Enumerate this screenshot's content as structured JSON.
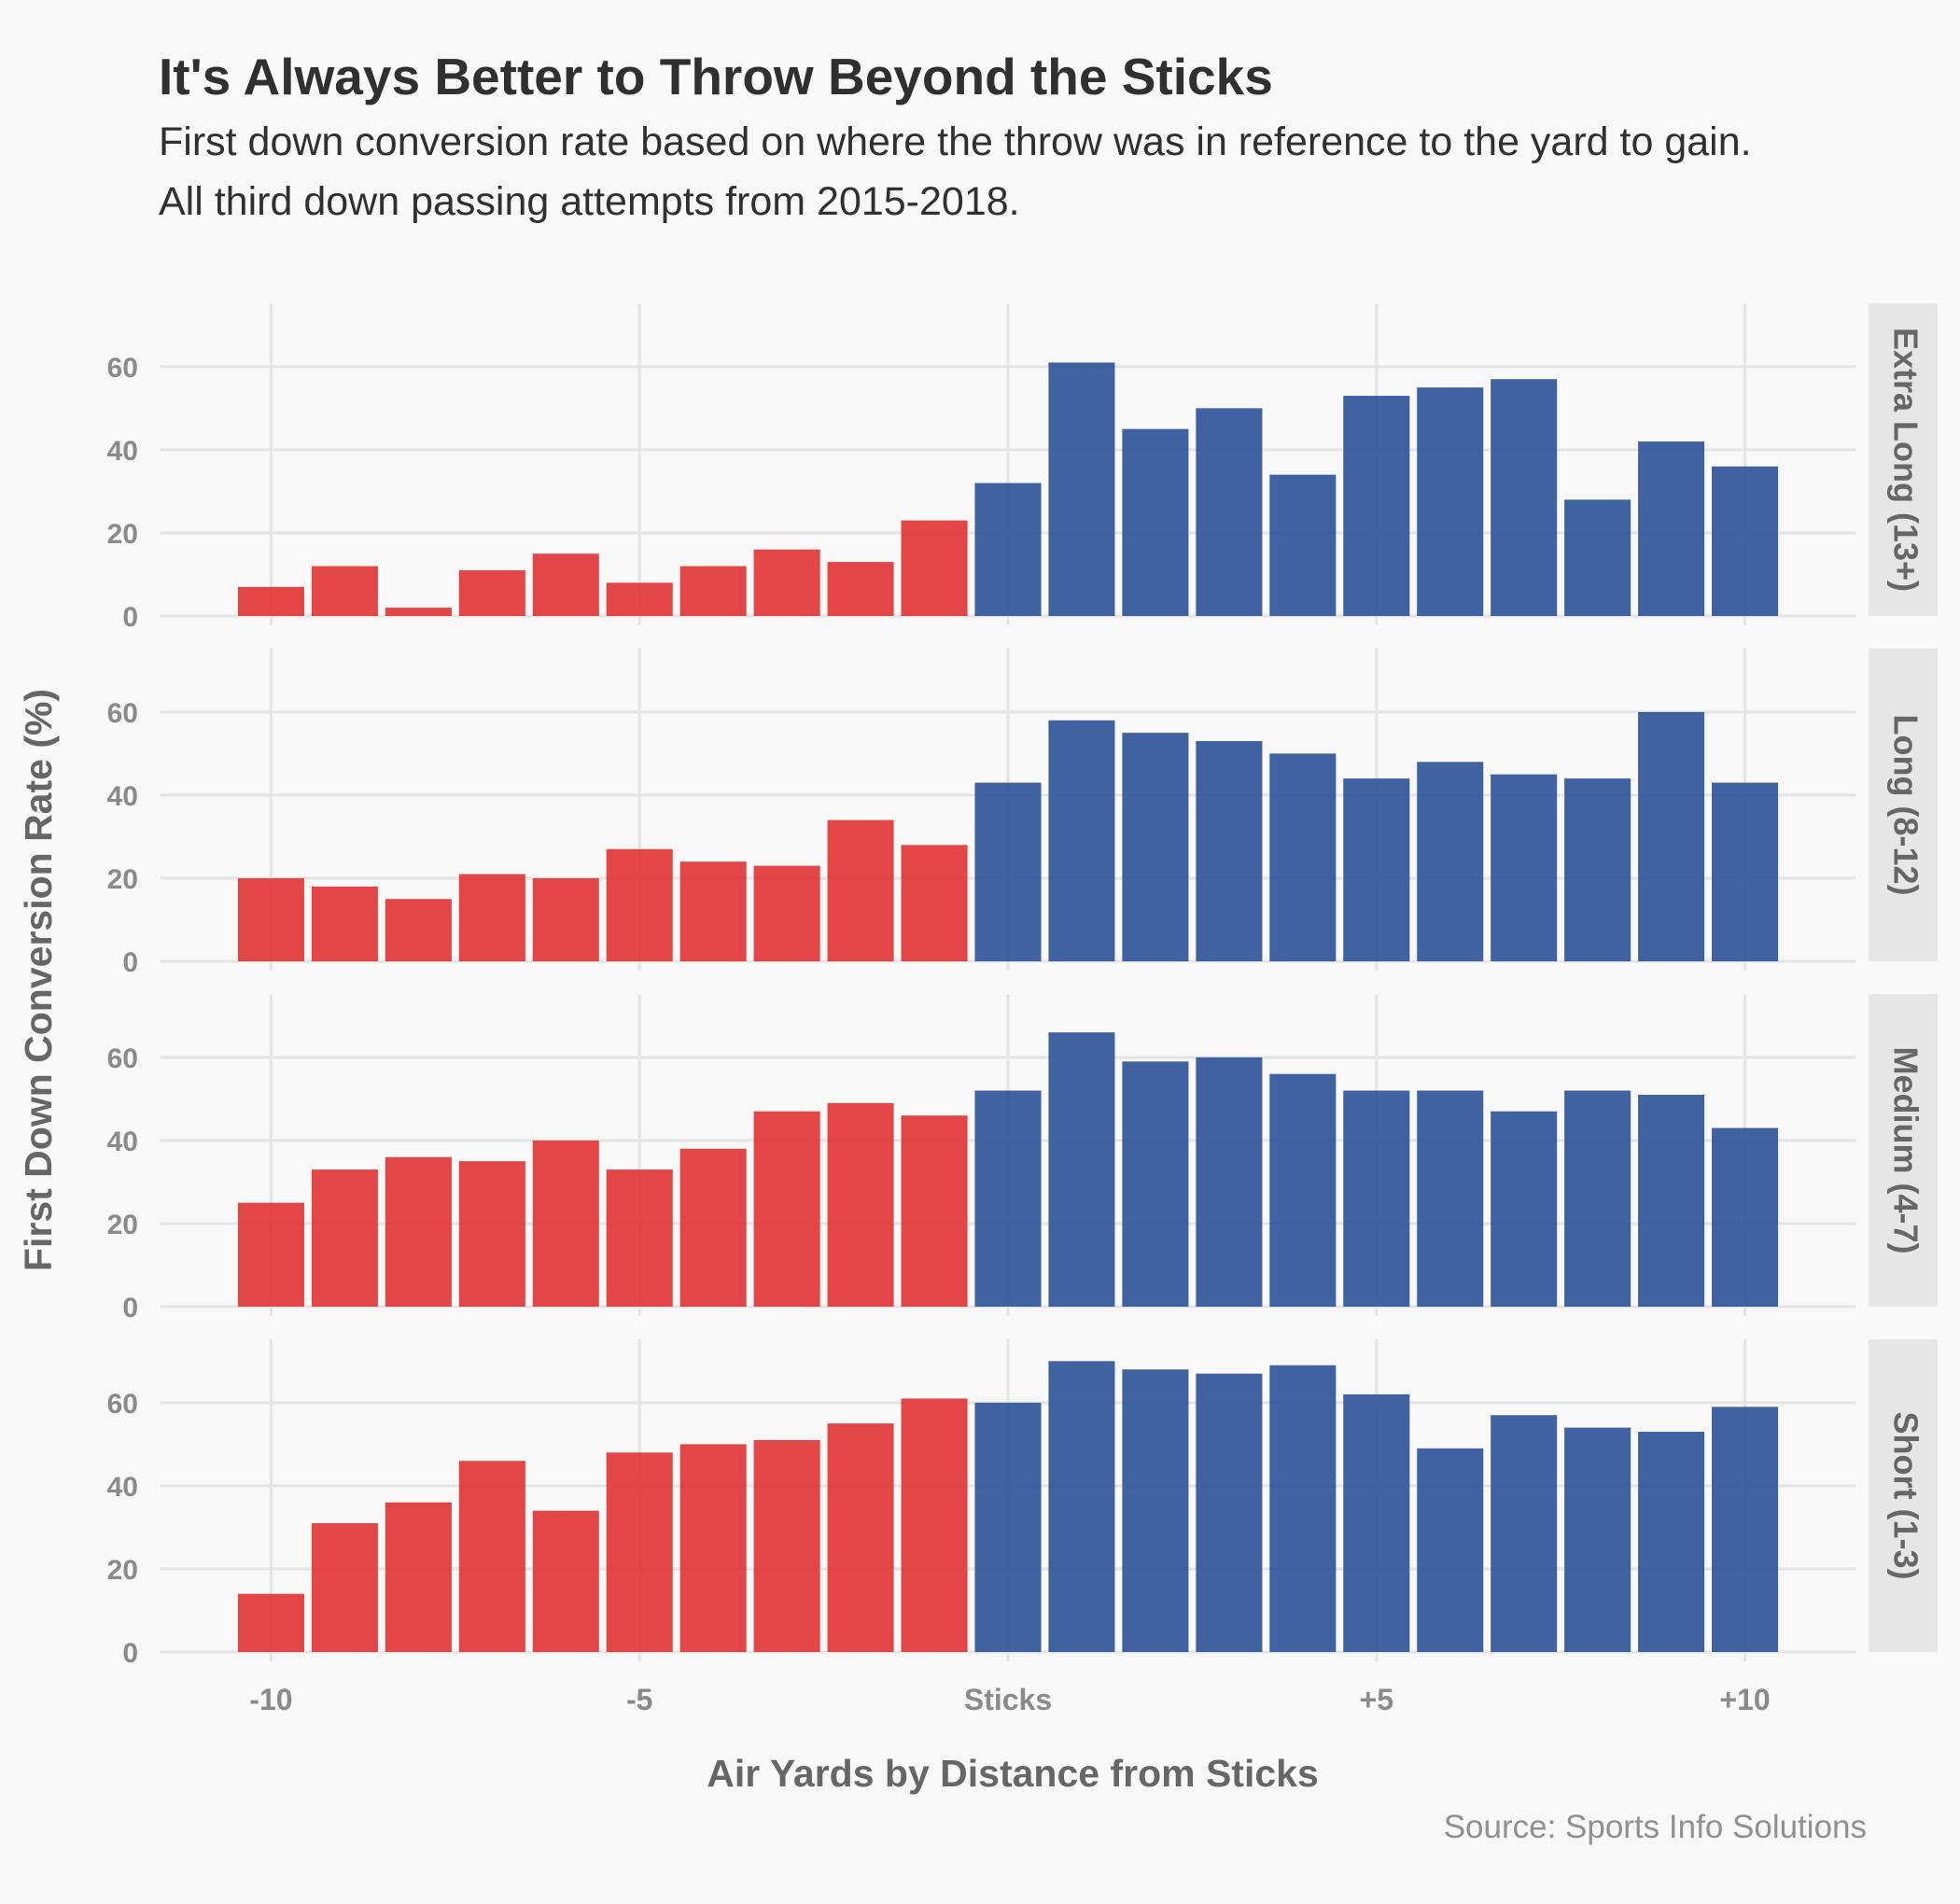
{
  "title": "It's Always Better to Throw Beyond the Sticks",
  "subtitle_lines": [
    "First down conversion rate based on where the throw was in reference to the yard to gain.",
    "All third down passing attempts from 2015-2018."
  ],
  "caption": "Source: Sports Info Solutions",
  "chart_data": {
    "type": "bar",
    "title": "It's Always Better to Throw Beyond the Sticks",
    "xlabel": "Air Yards by Distance from Sticks",
    "ylabel": "First Down Conversion Rate (%)",
    "x": [
      -10,
      -9,
      -8,
      -7,
      -6,
      -5,
      -4,
      -3,
      -2,
      -1,
      0,
      1,
      2,
      3,
      4,
      5,
      6,
      7,
      8,
      9,
      10
    ],
    "x_ticks": [
      {
        "value": -10,
        "label": "-10"
      },
      {
        "value": -5,
        "label": "-5"
      },
      {
        "value": 0,
        "label": "Sticks"
      },
      {
        "value": 5,
        "label": "+5"
      },
      {
        "value": 10,
        "label": "+10"
      }
    ],
    "xlim": [
      -11.5,
      11.5
    ],
    "y_ticks": [
      0,
      20,
      40,
      60
    ],
    "ylim": [
      0,
      73
    ],
    "grid": true,
    "colors": {
      "short_of_sticks": "#e03233",
      "beyond_sticks": "#2c5196"
    },
    "facets": [
      {
        "label": "Extra Long (13+)",
        "values": [
          7,
          12,
          2,
          11,
          15,
          8,
          12,
          16,
          13,
          23,
          32,
          61,
          45,
          50,
          34,
          53,
          55,
          57,
          28,
          42,
          36
        ]
      },
      {
        "label": "Long (8-12)",
        "values": [
          20,
          18,
          15,
          21,
          20,
          27,
          24,
          23,
          34,
          28,
          43,
          58,
          55,
          53,
          50,
          44,
          48,
          45,
          44,
          60,
          43
        ]
      },
      {
        "label": "Medium (4-7)",
        "values": [
          25,
          33,
          36,
          35,
          40,
          33,
          38,
          47,
          49,
          46,
          52,
          66,
          59,
          60,
          56,
          52,
          52,
          47,
          52,
          51,
          43
        ]
      },
      {
        "label": "Short (1-3)",
        "values": [
          14,
          31,
          36,
          46,
          34,
          48,
          50,
          51,
          55,
          61,
          60,
          70,
          68,
          67,
          69,
          62,
          49,
          57,
          54,
          53,
          59
        ]
      }
    ]
  }
}
